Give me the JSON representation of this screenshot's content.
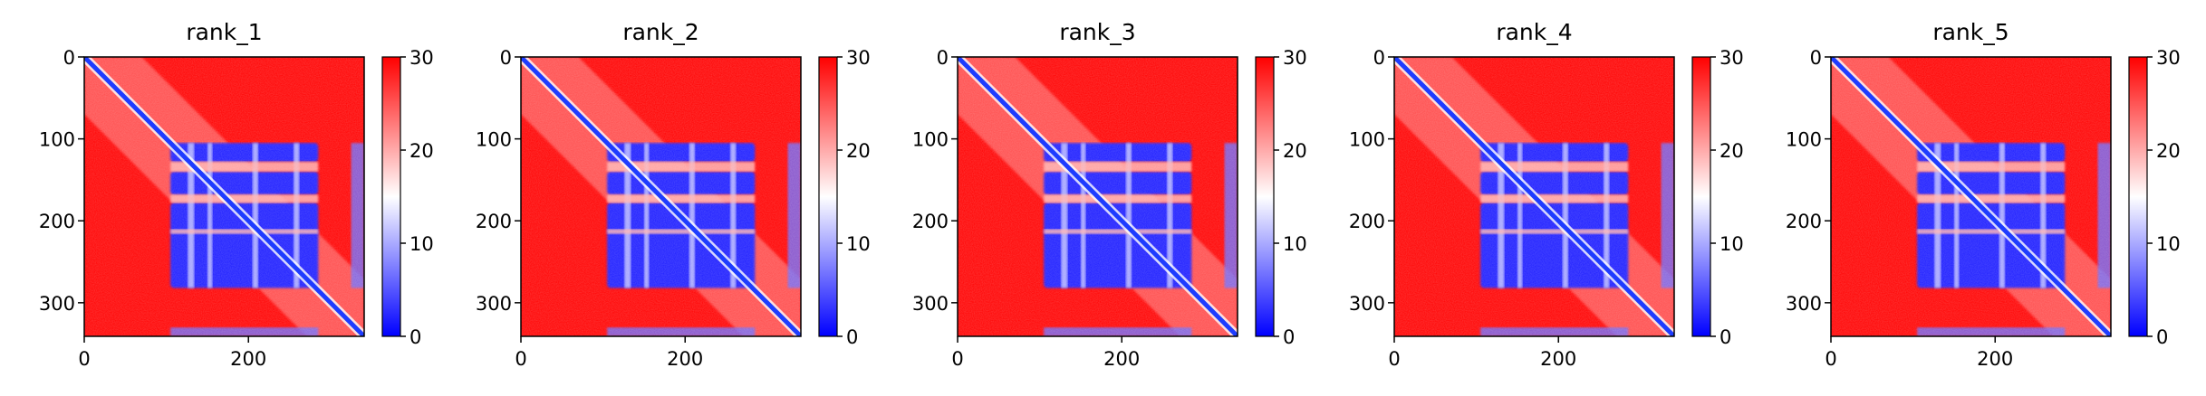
{
  "figure": {
    "background": "#ffffff"
  },
  "chart_data": [
    {
      "type": "heatmap",
      "title": "rank_1",
      "xlabel": "",
      "ylabel": "",
      "x_range": [
        0,
        341
      ],
      "y_range": [
        0,
        341
      ],
      "x_ticks": [
        0,
        200
      ],
      "y_ticks": [
        0,
        100,
        200,
        300
      ],
      "colormap": "bwr",
      "colorbar": {
        "min": 0,
        "max": 30,
        "ticks": [
          0,
          10,
          20,
          30
        ]
      },
      "regions_low_value": [
        [
          110,
          140
        ],
        [
          140,
          165
        ],
        [
          165,
          280
        ]
      ],
      "diagonal": true,
      "grid": false
    },
    {
      "type": "heatmap",
      "title": "rank_2",
      "xlabel": "",
      "ylabel": "",
      "x_range": [
        0,
        341
      ],
      "y_range": [
        0,
        341
      ],
      "x_ticks": [
        0,
        200
      ],
      "y_ticks": [
        0,
        100,
        200,
        300
      ],
      "colormap": "bwr",
      "colorbar": {
        "min": 0,
        "max": 30,
        "ticks": [
          0,
          10,
          20,
          30
        ]
      },
      "regions_low_value": [
        [
          110,
          140
        ],
        [
          140,
          165
        ],
        [
          165,
          280
        ]
      ],
      "diagonal": true,
      "grid": false
    },
    {
      "type": "heatmap",
      "title": "rank_3",
      "xlabel": "",
      "ylabel": "",
      "x_range": [
        0,
        341
      ],
      "y_range": [
        0,
        341
      ],
      "x_ticks": [
        0,
        200
      ],
      "y_ticks": [
        0,
        100,
        200,
        300
      ],
      "colormap": "bwr",
      "colorbar": {
        "min": 0,
        "max": 30,
        "ticks": [
          0,
          10,
          20,
          30
        ]
      },
      "regions_low_value": [
        [
          110,
          140
        ],
        [
          140,
          165
        ],
        [
          165,
          280
        ]
      ],
      "diagonal": true,
      "grid": false
    },
    {
      "type": "heatmap",
      "title": "rank_4",
      "xlabel": "",
      "ylabel": "",
      "x_range": [
        0,
        341
      ],
      "y_range": [
        0,
        341
      ],
      "x_ticks": [
        0,
        200
      ],
      "y_ticks": [
        0,
        100,
        200,
        300
      ],
      "colormap": "bwr",
      "colorbar": {
        "min": 0,
        "max": 30,
        "ticks": [
          0,
          10,
          20,
          30
        ]
      },
      "regions_low_value": [
        [
          110,
          140
        ],
        [
          140,
          165
        ],
        [
          165,
          280
        ]
      ],
      "diagonal": true,
      "grid": false
    },
    {
      "type": "heatmap",
      "title": "rank_5",
      "xlabel": "",
      "ylabel": "",
      "x_range": [
        0,
        341
      ],
      "y_range": [
        0,
        341
      ],
      "x_ticks": [
        0,
        200
      ],
      "y_ticks": [
        0,
        100,
        200,
        300
      ],
      "colormap": "bwr",
      "colorbar": {
        "min": 0,
        "max": 30,
        "ticks": [
          0,
          10,
          20,
          30
        ]
      },
      "regions_low_value": [
        [
          110,
          140
        ],
        [
          140,
          165
        ],
        [
          165,
          280
        ]
      ],
      "diagonal": true,
      "grid": false
    }
  ]
}
